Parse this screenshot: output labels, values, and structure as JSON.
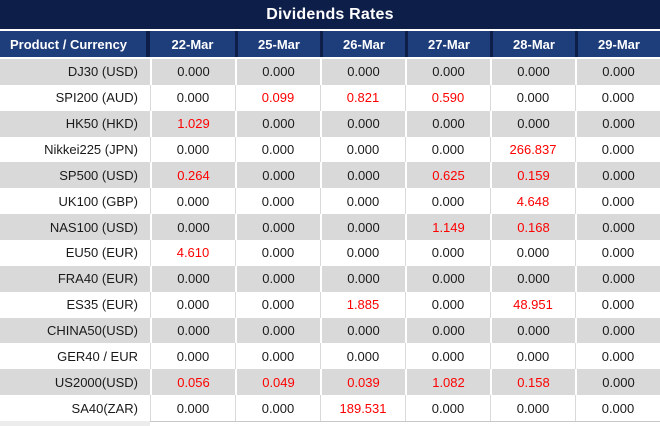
{
  "title": "Dividends Rates",
  "header": {
    "product": "Product / Currency",
    "dates": [
      "22-Mar",
      "25-Mar",
      "26-Mar",
      "27-Mar",
      "28-Mar",
      "29-Mar"
    ]
  },
  "rows": [
    {
      "product": "DJ30 (USD)",
      "values": [
        "0.000",
        "0.000",
        "0.000",
        "0.000",
        "0.000",
        "0.000"
      ],
      "red": []
    },
    {
      "product": "SPI200 (AUD)",
      "values": [
        "0.000",
        "0.099",
        "0.821",
        "0.590",
        "0.000",
        "0.000"
      ],
      "red": [
        1,
        2,
        3
      ]
    },
    {
      "product": "HK50 (HKD)",
      "values": [
        "1.029",
        "0.000",
        "0.000",
        "0.000",
        "0.000",
        "0.000"
      ],
      "red": [
        0
      ]
    },
    {
      "product": "Nikkei225 (JPN)",
      "values": [
        "0.000",
        "0.000",
        "0.000",
        "0.000",
        "266.837",
        "0.000"
      ],
      "red": [
        4
      ]
    },
    {
      "product": "SP500 (USD)",
      "values": [
        "0.264",
        "0.000",
        "0.000",
        "0.625",
        "0.159",
        "0.000"
      ],
      "red": [
        0,
        3,
        4
      ]
    },
    {
      "product": "UK100 (GBP)",
      "values": [
        "0.000",
        "0.000",
        "0.000",
        "0.000",
        "4.648",
        "0.000"
      ],
      "red": [
        4
      ]
    },
    {
      "product": "NAS100 (USD)",
      "values": [
        "0.000",
        "0.000",
        "0.000",
        "1.149",
        "0.168",
        "0.000"
      ],
      "red": [
        3,
        4
      ]
    },
    {
      "product": "EU50 (EUR)",
      "values": [
        "4.610",
        "0.000",
        "0.000",
        "0.000",
        "0.000",
        "0.000"
      ],
      "red": [
        0
      ]
    },
    {
      "product": "FRA40 (EUR)",
      "values": [
        "0.000",
        "0.000",
        "0.000",
        "0.000",
        "0.000",
        "0.000"
      ],
      "red": []
    },
    {
      "product": "ES35 (EUR)",
      "values": [
        "0.000",
        "0.000",
        "1.885",
        "0.000",
        "48.951",
        "0.000"
      ],
      "red": [
        2,
        4
      ]
    },
    {
      "product": "CHINA50(USD)",
      "values": [
        "0.000",
        "0.000",
        "0.000",
        "0.000",
        "0.000",
        "0.000"
      ],
      "red": []
    },
    {
      "product": "GER40 / EUR",
      "values": [
        "0.000",
        "0.000",
        "0.000",
        "0.000",
        "0.000",
        "0.000"
      ],
      "red": []
    },
    {
      "product": "US2000(USD)",
      "values": [
        "0.056",
        "0.049",
        "0.039",
        "1.082",
        "0.158",
        "0.000"
      ],
      "red": [
        0,
        1,
        2,
        3,
        4
      ]
    },
    {
      "product": "SA40(ZAR)",
      "values": [
        "0.000",
        "0.000",
        "189.531",
        "0.000",
        "0.000",
        "0.000"
      ],
      "red": [
        2
      ]
    }
  ],
  "colors": {
    "title_bar": "#0D1E48",
    "header_row": "#1E3D7B",
    "row_alt_gray": "#D9D9D9",
    "negative_red": "#FE0000",
    "text": "#1A1A1A"
  }
}
